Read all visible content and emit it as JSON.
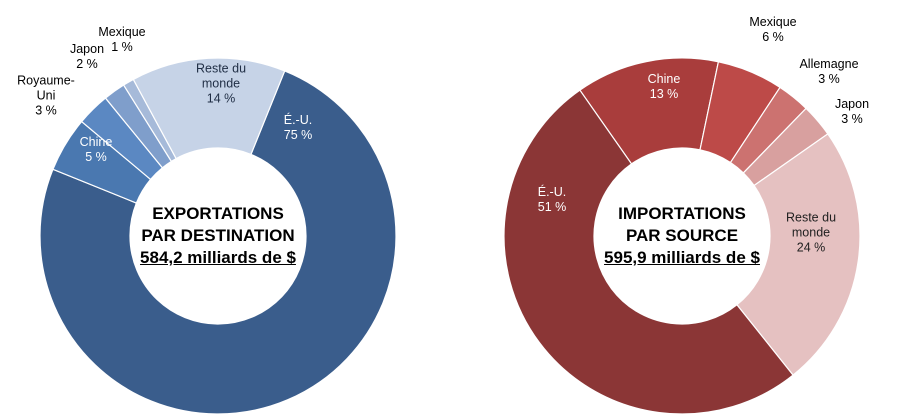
{
  "chart_data": [
    {
      "type": "pie",
      "center_title": "EXPORTATIONS PAR DESTINATION",
      "center_total": "584,2 milliards de $",
      "categories": [
        "É.-U.",
        "Chine",
        "Royaume-Uni",
        "Japon",
        "Mexique",
        "Reste du monde"
      ],
      "values": [
        75,
        5,
        3,
        2,
        1,
        14
      ],
      "value_labels": [
        "75 %",
        "5 %",
        "3 %",
        "2 %",
        "1 %",
        "14 %"
      ],
      "colors": [
        "#3a5d8c",
        "#4a78b0",
        "#5b88c2",
        "#7f9ecb",
        "#a6bad9",
        "#c6d3e7"
      ]
    },
    {
      "type": "pie",
      "center_title": "IMPORTATIONS PAR SOURCE",
      "center_total": "595,9 milliards de $",
      "categories": [
        "Chine",
        "Mexique",
        "Allemagne",
        "Japon",
        "Reste du monde",
        "É.-U."
      ],
      "values": [
        13,
        6,
        3,
        3,
        24,
        51
      ],
      "value_labels": [
        "13 %",
        "6 %",
        "3 %",
        "3 %",
        "24 %",
        "51 %"
      ],
      "colors": [
        "#a93d3c",
        "#bd4a48",
        "#cc7270",
        "#d8a09f",
        "#e5c1c1",
        "#8b3636"
      ]
    }
  ]
}
